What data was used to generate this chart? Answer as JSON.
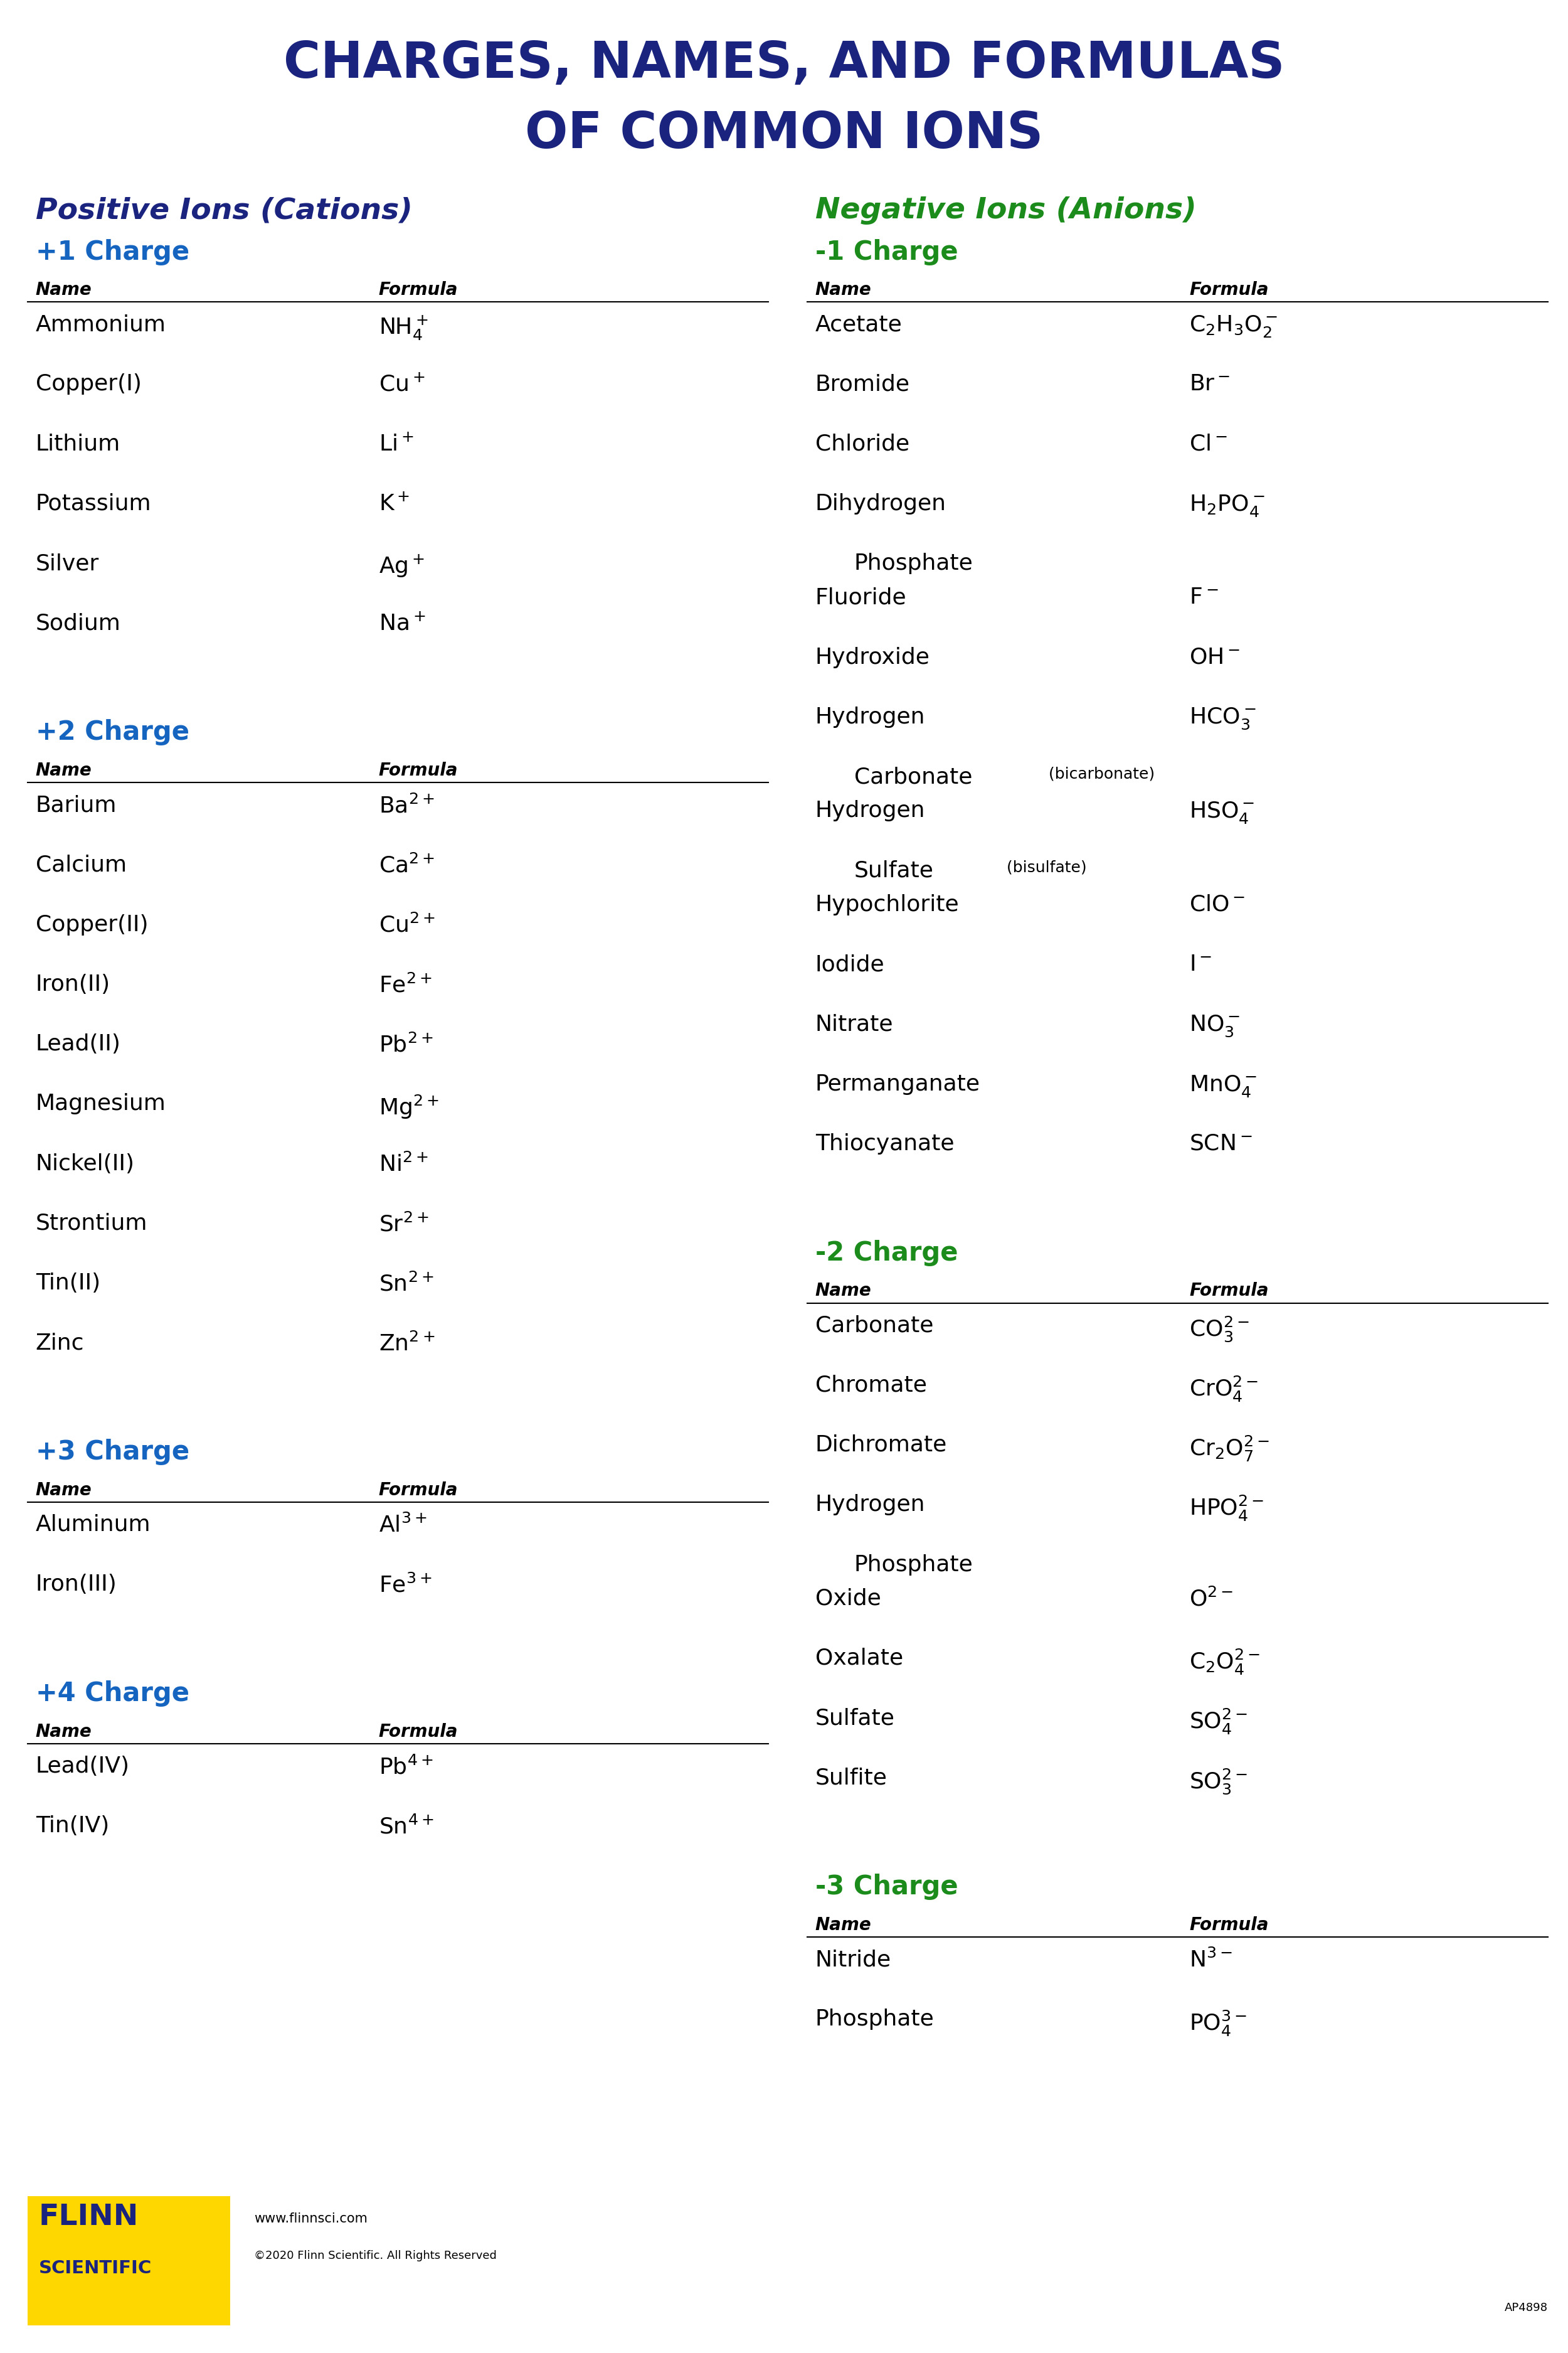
{
  "title_line1": "CHARGES, NAMES, AND FORMULAS",
  "title_line2": "OF COMMON IONS",
  "title_color": "#1a237e",
  "bg_color": "#ffffff",
  "cation_header": "Positive Ions (Cations)",
  "anion_header": "Negative Ions (Anions)",
  "cation_color": "#1a237e",
  "anion_color": "#1b8c1b",
  "charge_color_cation": "#1565c0",
  "charge_color_anion": "#1b8c1b",
  "anion_name_color": "#1b5e20",
  "cation_name_color": "#000000",
  "cations": {
    "+1 Charge": [
      [
        "Ammonium",
        "NH$_4^+$",
        false
      ],
      [
        "Copper(I)",
        "Cu$^+$",
        false
      ],
      [
        "Lithium",
        "Li$^+$",
        false
      ],
      [
        "Potassium",
        "K$^+$",
        false
      ],
      [
        "Silver",
        "Ag$^+$",
        false
      ],
      [
        "Sodium",
        "Na$^+$",
        false
      ]
    ],
    "+2 Charge": [
      [
        "Barium",
        "Ba$^{2+}$",
        false
      ],
      [
        "Calcium",
        "Ca$^{2+}$",
        false
      ],
      [
        "Copper(II)",
        "Cu$^{2+}$",
        false
      ],
      [
        "Iron(II)",
        "Fe$^{2+}$",
        false
      ],
      [
        "Lead(II)",
        "Pb$^{2+}$",
        false
      ],
      [
        "Magnesium",
        "Mg$^{2+}$",
        false
      ],
      [
        "Nickel(II)",
        "Ni$^{2+}$",
        false
      ],
      [
        "Strontium",
        "Sr$^{2+}$",
        false
      ],
      [
        "Tin(II)",
        "Sn$^{2+}$",
        false
      ],
      [
        "Zinc",
        "Zn$^{2+}$",
        false
      ]
    ],
    "+3 Charge": [
      [
        "Aluminum",
        "Al$^{3+}$",
        false
      ],
      [
        "Iron(III)",
        "Fe$^{3+}$",
        false
      ]
    ],
    "+4 Charge": [
      [
        "Lead(IV)",
        "Pb$^{4+}$",
        false
      ],
      [
        "Tin(IV)",
        "Sn$^{4+}$",
        false
      ]
    ]
  },
  "anions": {
    "-1 Charge": [
      [
        "Acetate",
        "C$_2$H$_3$O$_2^-$",
        false
      ],
      [
        "Bromide",
        "Br$^-$",
        false
      ],
      [
        "Chloride",
        "Cl$^-$",
        false
      ],
      [
        "Dihydrogen",
        "H$_2$PO$_4^-$",
        "  Phosphate"
      ],
      [
        "Fluoride",
        "F$^-$",
        false
      ],
      [
        "Hydroxide",
        "OH$^-$",
        false
      ],
      [
        "Hydrogen",
        "HCO$_3^-$",
        "  Carbonate (bicarbonate)"
      ],
      [
        "Hydrogen",
        "HSO$_4^-$",
        "  Sulfate (bisulfate)"
      ],
      [
        "Hypochlorite",
        "ClO$^-$",
        false
      ],
      [
        "Iodide",
        "I$^-$",
        false
      ],
      [
        "Nitrate",
        "NO$_3^-$",
        false
      ],
      [
        "Permanganate",
        "MnO$_4^-$",
        false
      ],
      [
        "Thiocyanate",
        "SCN$^-$",
        false
      ]
    ],
    "-2 Charge": [
      [
        "Carbonate",
        "CO$_3^{2-}$",
        false
      ],
      [
        "Chromate",
        "CrO$_4^{2-}$",
        false
      ],
      [
        "Dichromate",
        "Cr$_2$O$_7^{2-}$",
        false
      ],
      [
        "Hydrogen",
        "HPO$_4^{2-}$",
        "  Phosphate"
      ],
      [
        "Oxide",
        "O$^{2-}$",
        false
      ],
      [
        "Oxalate",
        "C$_2$O$_4^{2-}$",
        false
      ],
      [
        "Sulfate",
        "SO$_4^{2-}$",
        false
      ],
      [
        "Sulfite",
        "SO$_3^{2-}$",
        false
      ]
    ],
    "-3 Charge": [
      [
        "Nitride",
        "N$^{3-}$",
        false
      ],
      [
        "Phosphate",
        "PO$_4^{3-}$",
        false
      ]
    ]
  },
  "footer": {
    "logo_bg": "#FFD700",
    "logo_text1": "FLINN",
    "logo_text2": "SCIENTIFIC",
    "logo_color": "#1a237e",
    "website": "www.flinnsci.com",
    "copyright": "©2020 Flinn Scientific. All Rights Reserved",
    "code": "AP4898"
  }
}
